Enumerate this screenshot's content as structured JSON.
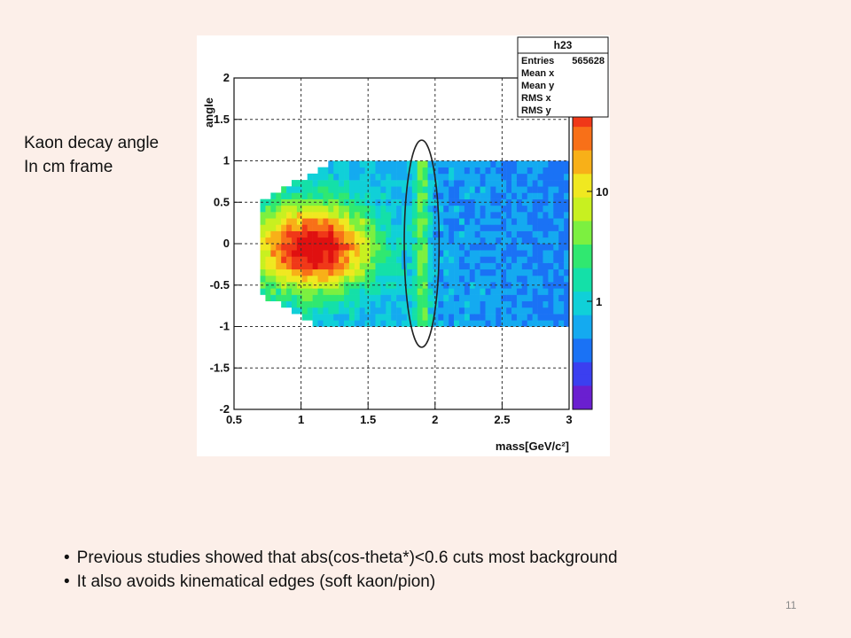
{
  "slide": {
    "side_label_line1": "Kaon decay angle",
    "side_label_line2": "In cm frame",
    "bullets": [
      "Previous studies showed that abs(cos-theta*)<0.6 cuts most background",
      "It also avoids kinematical edges (soft kaon/pion)"
    ],
    "slide_number": "11"
  },
  "chart_data": {
    "type": "heatmap",
    "xlabel": "mass[GeV/c²]",
    "ylabel": "angle",
    "xlim": [
      0.5,
      3.0
    ],
    "ylim": [
      -2.0,
      2.0
    ],
    "x_ticks": [
      "0.5",
      "1",
      "1.5",
      "2",
      "2.5",
      "3"
    ],
    "y_ticks": [
      "-2",
      "-1.5",
      "-1",
      "-0.5",
      "0",
      "0.5",
      "1",
      "1.5",
      "2"
    ],
    "grid": true,
    "stats_box": {
      "title": "h23",
      "rows": [
        {
          "label": "Entries",
          "value": "565628"
        },
        {
          "label": "Mean x",
          "value": ""
        },
        {
          "label": "Mean y",
          "value": ""
        },
        {
          "label": "RMS x",
          "value": ""
        },
        {
          "label": "RMS y",
          "value": ""
        }
      ]
    },
    "z_scale": "log",
    "z_ticks": [
      "1",
      "10"
    ],
    "palette": [
      "#6a1fd0",
      "#3b3ff0",
      "#1a72f5",
      "#14aaf0",
      "#10d0d8",
      "#14e0a8",
      "#30e870",
      "#7cf040",
      "#c8f020",
      "#f0e820",
      "#f8b018",
      "#f87018",
      "#f03818",
      "#e01010"
    ],
    "selection_ellipse": {
      "center_x": 1.9,
      "center_y": 0.0,
      "half_width_x": 0.13,
      "half_height_y": 1.25
    },
    "density_notes": "Populated region spans mass ~0.7 to 3.0 and angle ~-1 to 1; densest (red) near mass 1.0-1.5, angle -0.5 to 0.5"
  }
}
